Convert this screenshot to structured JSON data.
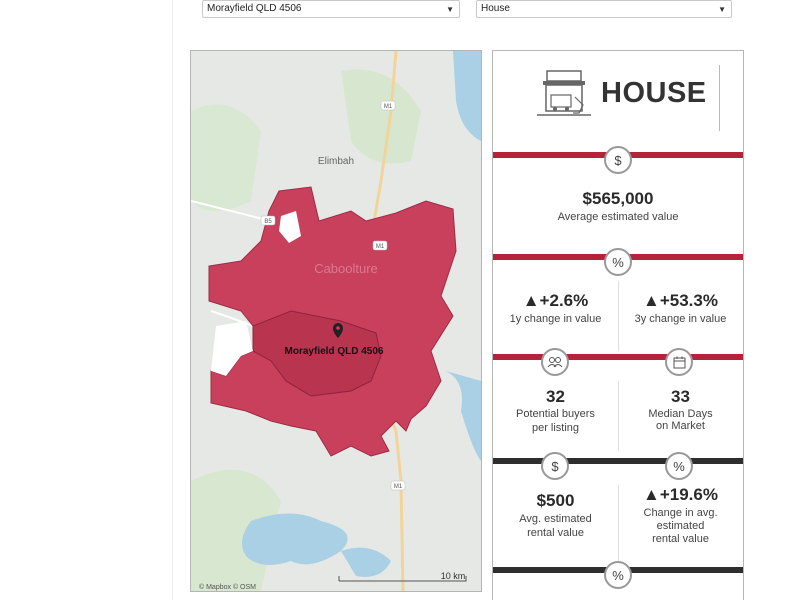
{
  "filters": {
    "location": "Morayfield QLD 4506",
    "property_type": "House"
  },
  "map": {
    "town_label": "Elimbah",
    "caboolture_label": "Caboolture",
    "marker_label": "Morayfield QLD 4506",
    "attribution": "© Mapbox  © OSM",
    "scale_label": "10 km",
    "road_m1": "M1",
    "road_b5": "B5",
    "region_color": "#c8405c"
  },
  "card": {
    "title": "HOUSE",
    "value": {
      "icon": "$",
      "amount": "$565,000",
      "label": "Average estimated value"
    },
    "change": {
      "icon": "%",
      "one_year": {
        "value": "▲+2.6%",
        "label": "1y change in value"
      },
      "three_year": {
        "value": "▲+53.3%",
        "label": "3y change in value"
      }
    },
    "buyers": {
      "value": "32",
      "label_line1": "Potential buyers",
      "label_line2": "per listing"
    },
    "days": {
      "value": "33",
      "label_line1": "Median Days",
      "label_line2": "on Market"
    },
    "rent": {
      "icon": "$",
      "value": "$500",
      "label_line1": "Avg. estimated",
      "label_line2": "rental value"
    },
    "rent_change": {
      "icon": "%",
      "value": "▲+19.6%",
      "label_line1": "Change in avg.",
      "label_line2": "estimated",
      "label_line3": "rental value"
    },
    "bottom_icon": "%",
    "accent_red": "#b5233a",
    "accent_dark": "#2e2e2e"
  }
}
